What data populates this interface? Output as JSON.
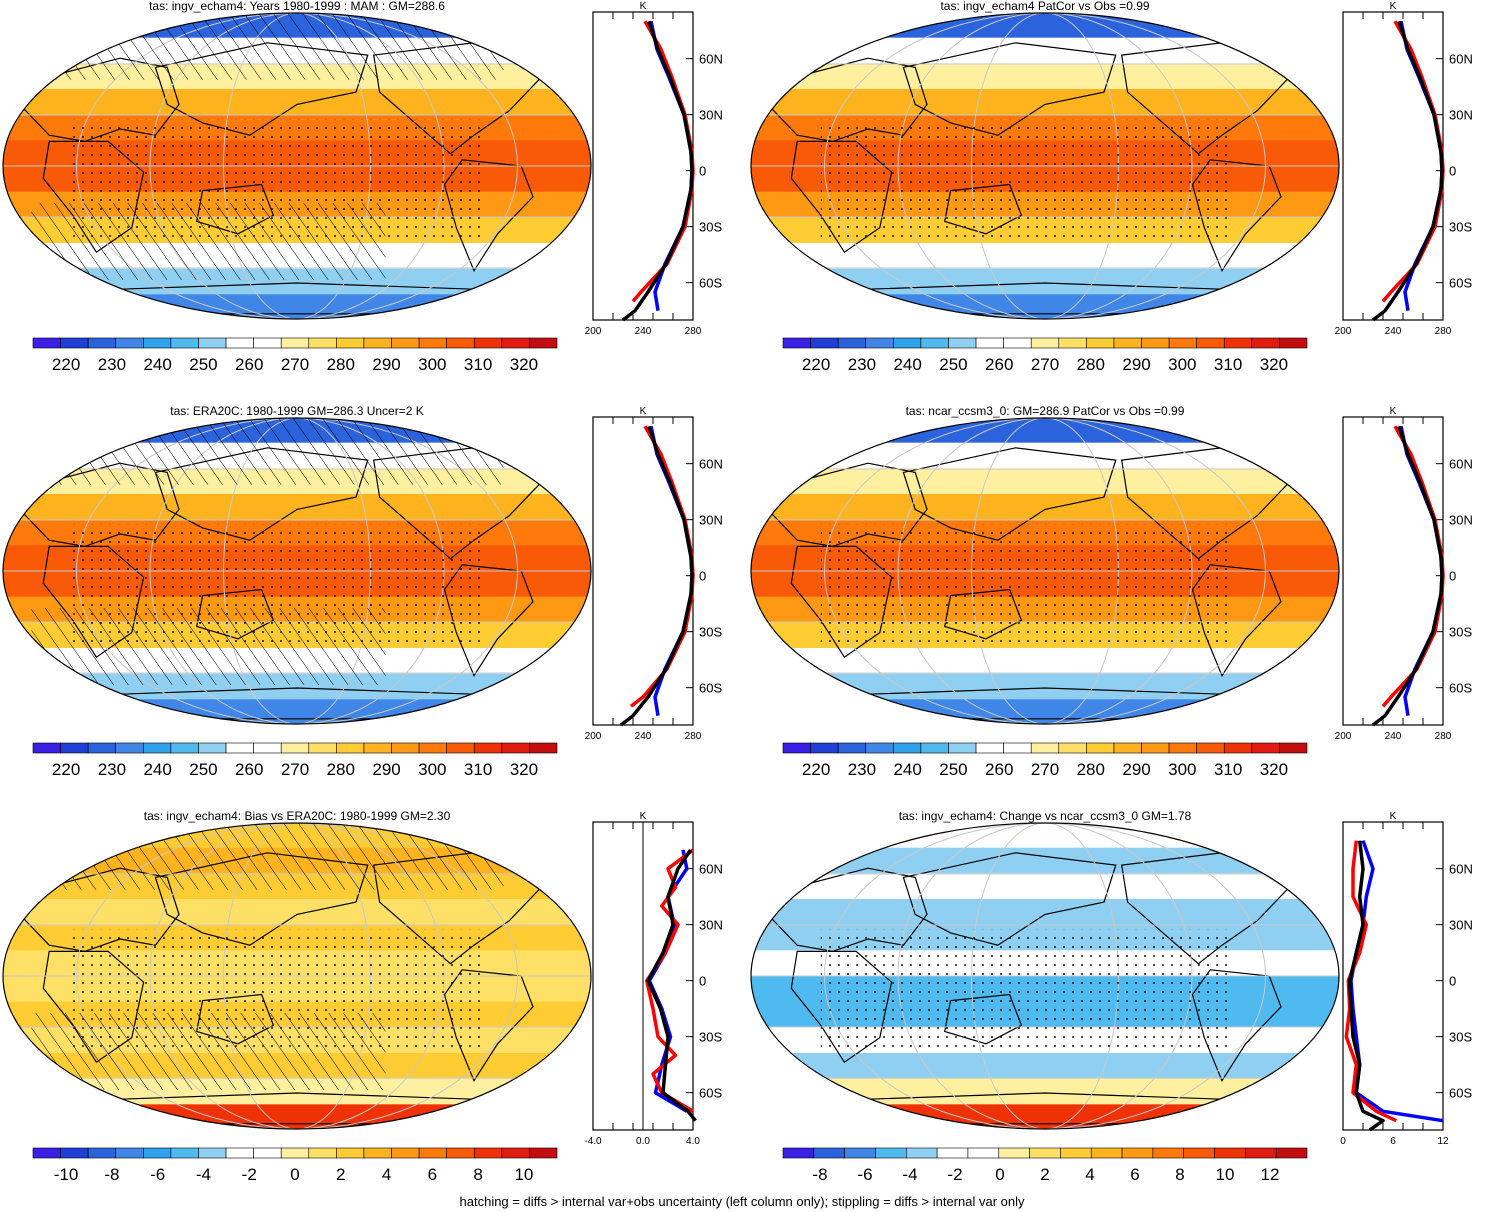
{
  "footer": "hatching = diffs > internal var+obs uncertainty (left column only); stippling = diffs > internal var only",
  "palettes": {
    "abs": [
      "#3a1fe6",
      "#1f3fd8",
      "#2a63dc",
      "#3f86e6",
      "#2fa2ec",
      "#4fbaf0",
      "#8fd0f2",
      "#ffffff",
      "#ffffff",
      "#fff0a0",
      "#ffe066",
      "#ffcc33",
      "#ffb31f",
      "#ff9914",
      "#ff7a0a",
      "#f85a08",
      "#ee3205",
      "#e01b10",
      "#c20e0e"
    ],
    "diff_bias": [
      "#3a1fe6",
      "#1f3fd8",
      "#2a63dc",
      "#3f86e6",
      "#2fa2ec",
      "#4fbaf0",
      "#8fd0f2",
      "#ffffff",
      "#ffffff",
      "#fff0a0",
      "#ffe066",
      "#ffcc33",
      "#ffb31f",
      "#ff9914",
      "#ff7a0a",
      "#f85a08",
      "#ee3205",
      "#e01b10",
      "#c20e0e"
    ],
    "diff_change": [
      "#3a1fe6",
      "#2a63dc",
      "#3f86e6",
      "#4fbaf0",
      "#8fd0f2",
      "#ffffff",
      "#ffffff",
      "#fff0a0",
      "#ffe066",
      "#ffcc33",
      "#ffb31f",
      "#ff9914",
      "#ff7a0a",
      "#f85a08",
      "#ee3205",
      "#e01b10",
      "#c20e0e"
    ]
  },
  "colors": {
    "obs_line": "#0000ff",
    "model_line": "#ff0000",
    "ref_line": "#000000",
    "grid": "#c8c8c8"
  },
  "chart_data": [
    {
      "id": "p1",
      "type": "heatmap",
      "title": "tas: ingv_echam4: Years 1980-1999 : MAM : GM=288.6",
      "colorbar": {
        "labels": [
          "220",
          "230",
          "240",
          "250",
          "260",
          "270",
          "280",
          "290",
          "300",
          "310",
          "320"
        ],
        "palette": "abs"
      },
      "hatching": true,
      "profile": {
        "type": "line",
        "unit": "K",
        "xticks": [
          "200",
          "240",
          "280"
        ],
        "xlim": [
          200,
          300
        ],
        "lat_ticks": [
          "60N",
          "30N",
          "0",
          "30S",
          "60S"
        ],
        "lat_values": [
          60,
          30,
          0,
          -30,
          -60
        ],
        "ylim": [
          -80,
          85
        ],
        "series": [
          {
            "color_key": "obs_line",
            "lat": [
              -75,
              -65,
              -50,
              -30,
              -10,
              0,
              10,
              30,
              50,
              65,
              80
            ],
            "values": [
              265,
              262,
              272,
              290,
              298,
              299,
              298,
              291,
              276,
              264,
              258
            ]
          },
          {
            "color_key": "model_line",
            "lat": [
              -70,
              -65,
              -50,
              -30,
              -10,
              0,
              10,
              30,
              50,
              65,
              80
            ],
            "values": [
              240,
              248,
              274,
              292,
              299,
              300,
              299,
              292,
              279,
              268,
              252
            ]
          },
          {
            "color_key": "ref_line",
            "lat": [
              -80,
              -75,
              -65,
              -50,
              -30,
              -10,
              0,
              10,
              30,
              50,
              65,
              80
            ],
            "values": [
              230,
              242,
              255,
              273,
              290,
              298,
              299,
              298,
              291,
              277,
              265,
              256
            ]
          }
        ]
      }
    },
    {
      "id": "p2",
      "type": "heatmap",
      "title": "tas: ingv_echam4 PatCor vs Obs =0.99",
      "colorbar": {
        "labels": [
          "220",
          "230",
          "240",
          "250",
          "260",
          "270",
          "280",
          "290",
          "300",
          "310",
          "320"
        ],
        "palette": "abs"
      },
      "hatching": false,
      "profile": {
        "type": "line",
        "unit": "K",
        "xticks": [
          "200",
          "240",
          "280"
        ],
        "xlim": [
          200,
          300
        ],
        "lat_ticks": [
          "60N",
          "30N",
          "0",
          "30S",
          "60S"
        ],
        "lat_values": [
          60,
          30,
          0,
          -30,
          -60
        ],
        "ylim": [
          -80,
          85
        ],
        "series": [
          {
            "color_key": "obs_line",
            "lat": [
              -75,
              -65,
              -50,
              -30,
              -10,
              0,
              10,
              30,
              50,
              65,
              80
            ],
            "values": [
              265,
              262,
              272,
              290,
              298,
              299,
              298,
              291,
              276,
              264,
              258
            ]
          },
          {
            "color_key": "model_line",
            "lat": [
              -70,
              -65,
              -50,
              -30,
              -10,
              0,
              10,
              30,
              50,
              65,
              80
            ],
            "values": [
              240,
              248,
              274,
              292,
              299,
              300,
              299,
              292,
              279,
              268,
              252
            ]
          },
          {
            "color_key": "ref_line",
            "lat": [
              -80,
              -75,
              -65,
              -50,
              -30,
              -10,
              0,
              10,
              30,
              50,
              65,
              80
            ],
            "values": [
              230,
              242,
              255,
              273,
              290,
              298,
              299,
              298,
              291,
              277,
              265,
              256
            ]
          }
        ]
      }
    },
    {
      "id": "p3",
      "type": "heatmap",
      "title": "tas: ERA20C: 1980-1999 GM=286.3 Uncer=2 K",
      "colorbar": {
        "labels": [
          "220",
          "230",
          "240",
          "250",
          "260",
          "270",
          "280",
          "290",
          "300",
          "310",
          "320"
        ],
        "palette": "abs"
      },
      "hatching": true,
      "profile": {
        "type": "line",
        "unit": "K",
        "xticks": [
          "200",
          "240",
          "280"
        ],
        "xlim": [
          200,
          300
        ],
        "lat_ticks": [
          "60N",
          "30N",
          "0",
          "30S",
          "60S"
        ],
        "lat_values": [
          60,
          30,
          0,
          -30,
          -60
        ],
        "ylim": [
          -80,
          85
        ],
        "series": [
          {
            "color_key": "obs_line",
            "lat": [
              -75,
              -65,
              -50,
              -30,
              -10,
              0,
              10,
              30,
              50,
              65,
              80
            ],
            "values": [
              265,
              262,
              272,
              290,
              298,
              299,
              298,
              291,
              276,
              264,
              258
            ]
          },
          {
            "color_key": "model_line",
            "lat": [
              -70,
              -65,
              -50,
              -30,
              -10,
              0,
              10,
              30,
              50,
              65,
              80
            ],
            "values": [
              238,
              250,
              274,
              292,
              299,
              300,
              299,
              292,
              279,
              268,
              252
            ]
          },
          {
            "color_key": "ref_line",
            "lat": [
              -80,
              -75,
              -65,
              -50,
              -30,
              -10,
              0,
              10,
              30,
              50,
              65,
              80
            ],
            "values": [
              228,
              240,
              255,
              273,
              290,
              298,
              299,
              298,
              291,
              277,
              265,
              256
            ]
          }
        ]
      }
    },
    {
      "id": "p4",
      "type": "heatmap",
      "title": "tas: ncar_ccsm3_0: GM=286.9 PatCor vs Obs =0.99",
      "colorbar": {
        "labels": [
          "220",
          "230",
          "240",
          "250",
          "260",
          "270",
          "280",
          "290",
          "300",
          "310",
          "320"
        ],
        "palette": "abs"
      },
      "hatching": false,
      "profile": {
        "type": "line",
        "unit": "K",
        "xticks": [
          "200",
          "240",
          "280"
        ],
        "xlim": [
          200,
          300
        ],
        "lat_ticks": [
          "60N",
          "30N",
          "0",
          "30S",
          "60S"
        ],
        "lat_values": [
          60,
          30,
          0,
          -30,
          -60
        ],
        "ylim": [
          -80,
          85
        ],
        "series": [
          {
            "color_key": "obs_line",
            "lat": [
              -75,
              -65,
              -50,
              -30,
              -10,
              0,
              10,
              30,
              50,
              65,
              80
            ],
            "values": [
              265,
              262,
              272,
              290,
              298,
              299,
              298,
              291,
              276,
              264,
              258
            ]
          },
          {
            "color_key": "model_line",
            "lat": [
              -70,
              -65,
              -50,
              -30,
              -10,
              0,
              10,
              30,
              50,
              65,
              80
            ],
            "values": [
              240,
              248,
              274,
              292,
              299,
              300,
              299,
              292,
              279,
              268,
              252
            ]
          },
          {
            "color_key": "ref_line",
            "lat": [
              -80,
              -75,
              -65,
              -50,
              -30,
              -10,
              0,
              10,
              30,
              50,
              65,
              80
            ],
            "values": [
              230,
              242,
              255,
              273,
              290,
              298,
              299,
              298,
              291,
              277,
              265,
              256
            ]
          }
        ]
      }
    },
    {
      "id": "p5",
      "type": "heatmap",
      "title": "tas: ingv_echam4: Bias vs ERA20C: 1980-1999 GM=2.30",
      "colorbar": {
        "labels": [
          "-10",
          "-8",
          "-6",
          "-4",
          "-2",
          "0",
          "2",
          "4",
          "6",
          "8",
          "10"
        ],
        "palette": "diff_bias"
      },
      "hatching": true,
      "profile": {
        "type": "line",
        "unit": "K",
        "xticks": [
          "-4.0",
          "0.0",
          "4.0"
        ],
        "xlim": [
          -4,
          4
        ],
        "zero_line": 0,
        "lat_ticks": [
          "60N",
          "30N",
          "0",
          "30S",
          "60S"
        ],
        "lat_values": [
          60,
          30,
          0,
          -30,
          -60
        ],
        "ylim": [
          -80,
          85
        ],
        "series": [
          {
            "color_key": "obs_line",
            "lat": [
              -70,
              -60,
              -45,
              -30,
              -15,
              0,
              15,
              30,
              45,
              60,
              70
            ],
            "values": [
              3.5,
              1.0,
              1.5,
              2.2,
              1.5,
              0.5,
              1.8,
              2.5,
              2.0,
              3.5,
              3.2
            ]
          },
          {
            "color_key": "model_line",
            "lat": [
              -70,
              -60,
              -50,
              -40,
              -30,
              -15,
              0,
              15,
              30,
              40,
              50,
              60,
              70
            ],
            "values": [
              4.0,
              1.5,
              0.8,
              2.6,
              1.2,
              0.8,
              0.3,
              1.8,
              2.8,
              1.5,
              2.6,
              2.0,
              4.0
            ]
          },
          {
            "color_key": "ref_line",
            "lat": [
              -75,
              -70,
              -60,
              -45,
              -30,
              -15,
              0,
              15,
              30,
              45,
              60,
              70
            ],
            "values": [
              4.2,
              3.6,
              1.6,
              1.8,
              2.0,
              1.4,
              0.4,
              1.6,
              2.4,
              2.0,
              2.8,
              3.8
            ]
          }
        ]
      }
    },
    {
      "id": "p6",
      "type": "heatmap",
      "title": "tas: ingv_echam4: Change vs ncar_ccsm3_0 GM=1.78",
      "colorbar": {
        "labels": [
          "-8",
          "-6",
          "-4",
          "-2",
          "0",
          "2",
          "4",
          "6",
          "8",
          "10",
          "12"
        ],
        "palette": "diff_change"
      },
      "hatching": false,
      "profile": {
        "type": "line",
        "unit": "K",
        "xticks": [
          "0",
          "6",
          "12"
        ],
        "xlim": [
          0,
          15
        ],
        "lat_ticks": [
          "60N",
          "30N",
          "0",
          "30S",
          "60S"
        ],
        "lat_values": [
          60,
          30,
          0,
          -30,
          -60
        ],
        "ylim": [
          -80,
          85
        ],
        "series": [
          {
            "color_key": "obs_line",
            "lat": [
              -75,
              -70,
              -60,
              -45,
              -30,
              -15,
              0,
              15,
              30,
              45,
              60,
              75
            ],
            "values": [
              15,
              6,
              2,
              2.5,
              2,
              1.5,
              1.2,
              2,
              3,
              3.5,
              4.5,
              3
            ]
          },
          {
            "color_key": "model_line",
            "lat": [
              -75,
              -70,
              -60,
              -45,
              -30,
              -15,
              0,
              15,
              30,
              45,
              60,
              75
            ],
            "values": [
              8,
              5,
              1.5,
              2.0,
              0.5,
              1,
              0.8,
              2.5,
              3.5,
              1.5,
              1.5,
              2
            ]
          },
          {
            "color_key": "ref_line",
            "lat": [
              -80,
              -75,
              -70,
              -60,
              -45,
              -30,
              -15,
              0,
              15,
              30,
              45,
              60,
              75
            ],
            "values": [
              4,
              6,
              3,
              2,
              2.5,
              1.5,
              1.2,
              1.0,
              2,
              3,
              2.5,
              3,
              2.5
            ]
          }
        ]
      }
    }
  ]
}
